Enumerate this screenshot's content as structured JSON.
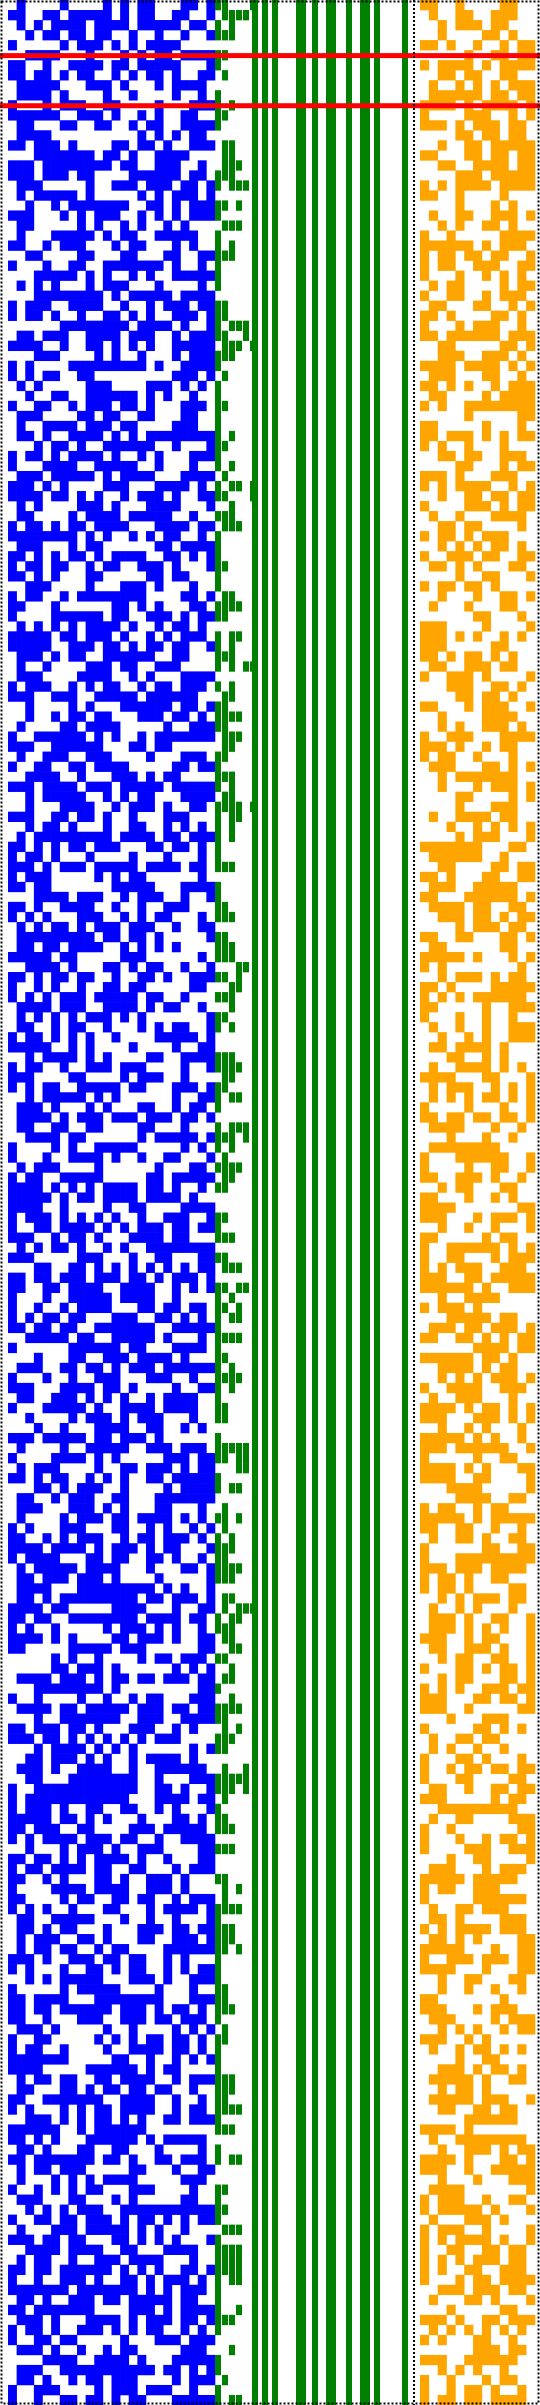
{
  "colors": {
    "background": "#ffffff",
    "left_block": "#0000ff",
    "middle_block": "#008000",
    "right_block": "#ffa500",
    "highlight": "#ff0000",
    "border": "#000000"
  },
  "cell_counts": {
    "rows": 240,
    "left_columns": 24,
    "right_columns": 13,
    "green_bars": 10
  },
  "highlighted_rows": [
    5,
    10
  ],
  "fill_density": {
    "left_block": 0.55,
    "right_block": 0.5
  }
}
